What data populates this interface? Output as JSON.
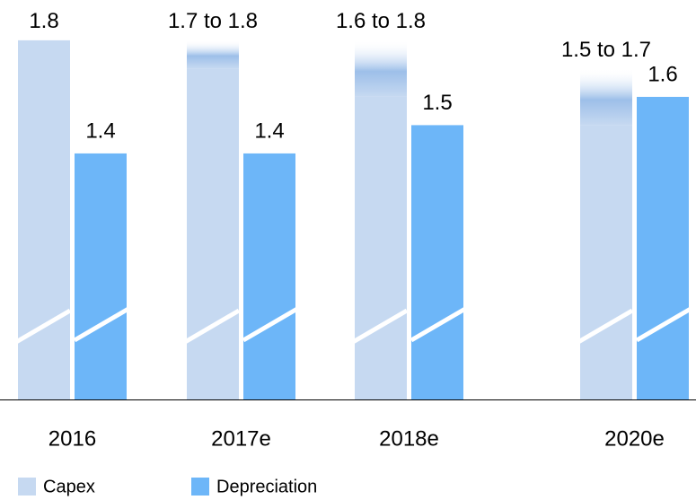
{
  "chart_data": {
    "type": "bar",
    "categories": [
      "2016",
      "2017e",
      "2018e",
      "2020e"
    ],
    "series": [
      {
        "name": "Capex",
        "color": "#c6d9f1",
        "range_color": "#9dbfe9",
        "lows": [
          1.8,
          1.7,
          1.6,
          1.5
        ],
        "values": [
          1.8,
          1.8,
          1.8,
          1.7
        ],
        "value_labels": [
          "1.8",
          "1.7 to 1.8",
          "1.6 to 1.8",
          "1.5 to 1.7"
        ]
      },
      {
        "name": "Depreciation",
        "color": "#6db6f8",
        "values": [
          1.4,
          1.4,
          1.5,
          1.6
        ]
      }
    ],
    "ylim": [
      0.53,
      1.9
    ],
    "axis_break": true
  }
}
